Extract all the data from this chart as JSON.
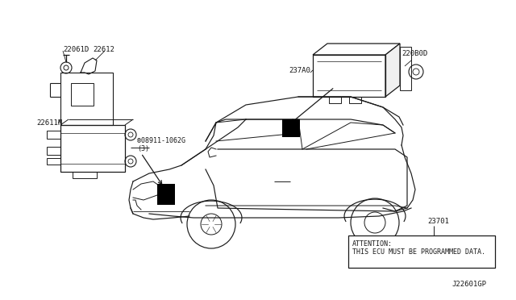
{
  "bg_color": "#ffffff",
  "line_color": "#1a1a1a",
  "text_color": "#1a1a1a",
  "fs": 6.5,
  "footer": "J22601GP",
  "attention_text": "ATTENTION:\nTHIS ECU MUST BE PROGRAMMED DATA.",
  "label_23701": "23701",
  "label_22061D": "22061D",
  "label_22612": "22612",
  "label_22611N": "22611N",
  "label_bolt": "®08911-1062G\n(3)",
  "label_237A0": "237A0",
  "label_220B0D": "220B0D"
}
